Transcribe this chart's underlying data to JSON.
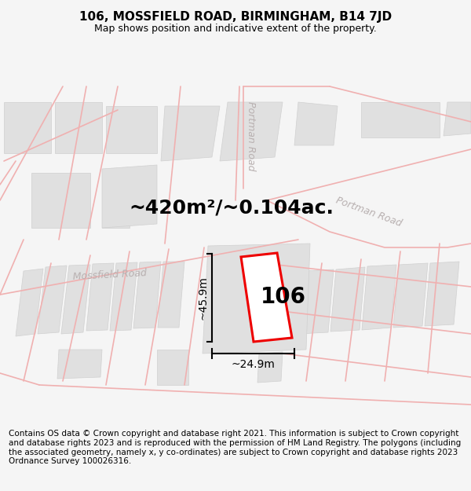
{
  "title_line1": "106, MOSSFIELD ROAD, BIRMINGHAM, B14 7JD",
  "title_line2": "Map shows position and indicative extent of the property.",
  "area_text": "~420m²/~0.104ac.",
  "property_label": "106",
  "dim_width": "~24.9m",
  "dim_height": "~45.9m",
  "road_label_mossfield": "Mossfield Road",
  "road_label_portman_upper": "Portman Road",
  "road_label_portman_lower": "Portman Road",
  "footer_text": "Contains OS data © Crown copyright and database right 2021. This information is subject to Crown copyright and database rights 2023 and is reproduced with the permission of HM Land Registry. The polygons (including the associated geometry, namely x, y co-ordinates) are subject to Crown copyright and database rights 2023 Ordnance Survey 100026316.",
  "bg_color": "#f5f5f5",
  "map_bg": "#ffffff",
  "road_line_color": "#f0b0b0",
  "building_fill": "#e0e0e0",
  "building_edge": "#d0d0d0",
  "property_edge_color": "#ee0000",
  "property_fill": "#ffffff",
  "dim_line_color": "#000000",
  "text_color": "#000000",
  "road_text_color": "#b8b0b0",
  "title_fontsize": 11,
  "subtitle_fontsize": 9,
  "area_fontsize": 18,
  "label_fontsize": 20,
  "dim_fontsize": 10,
  "road_fontsize": 9,
  "footer_fontsize": 7.5
}
